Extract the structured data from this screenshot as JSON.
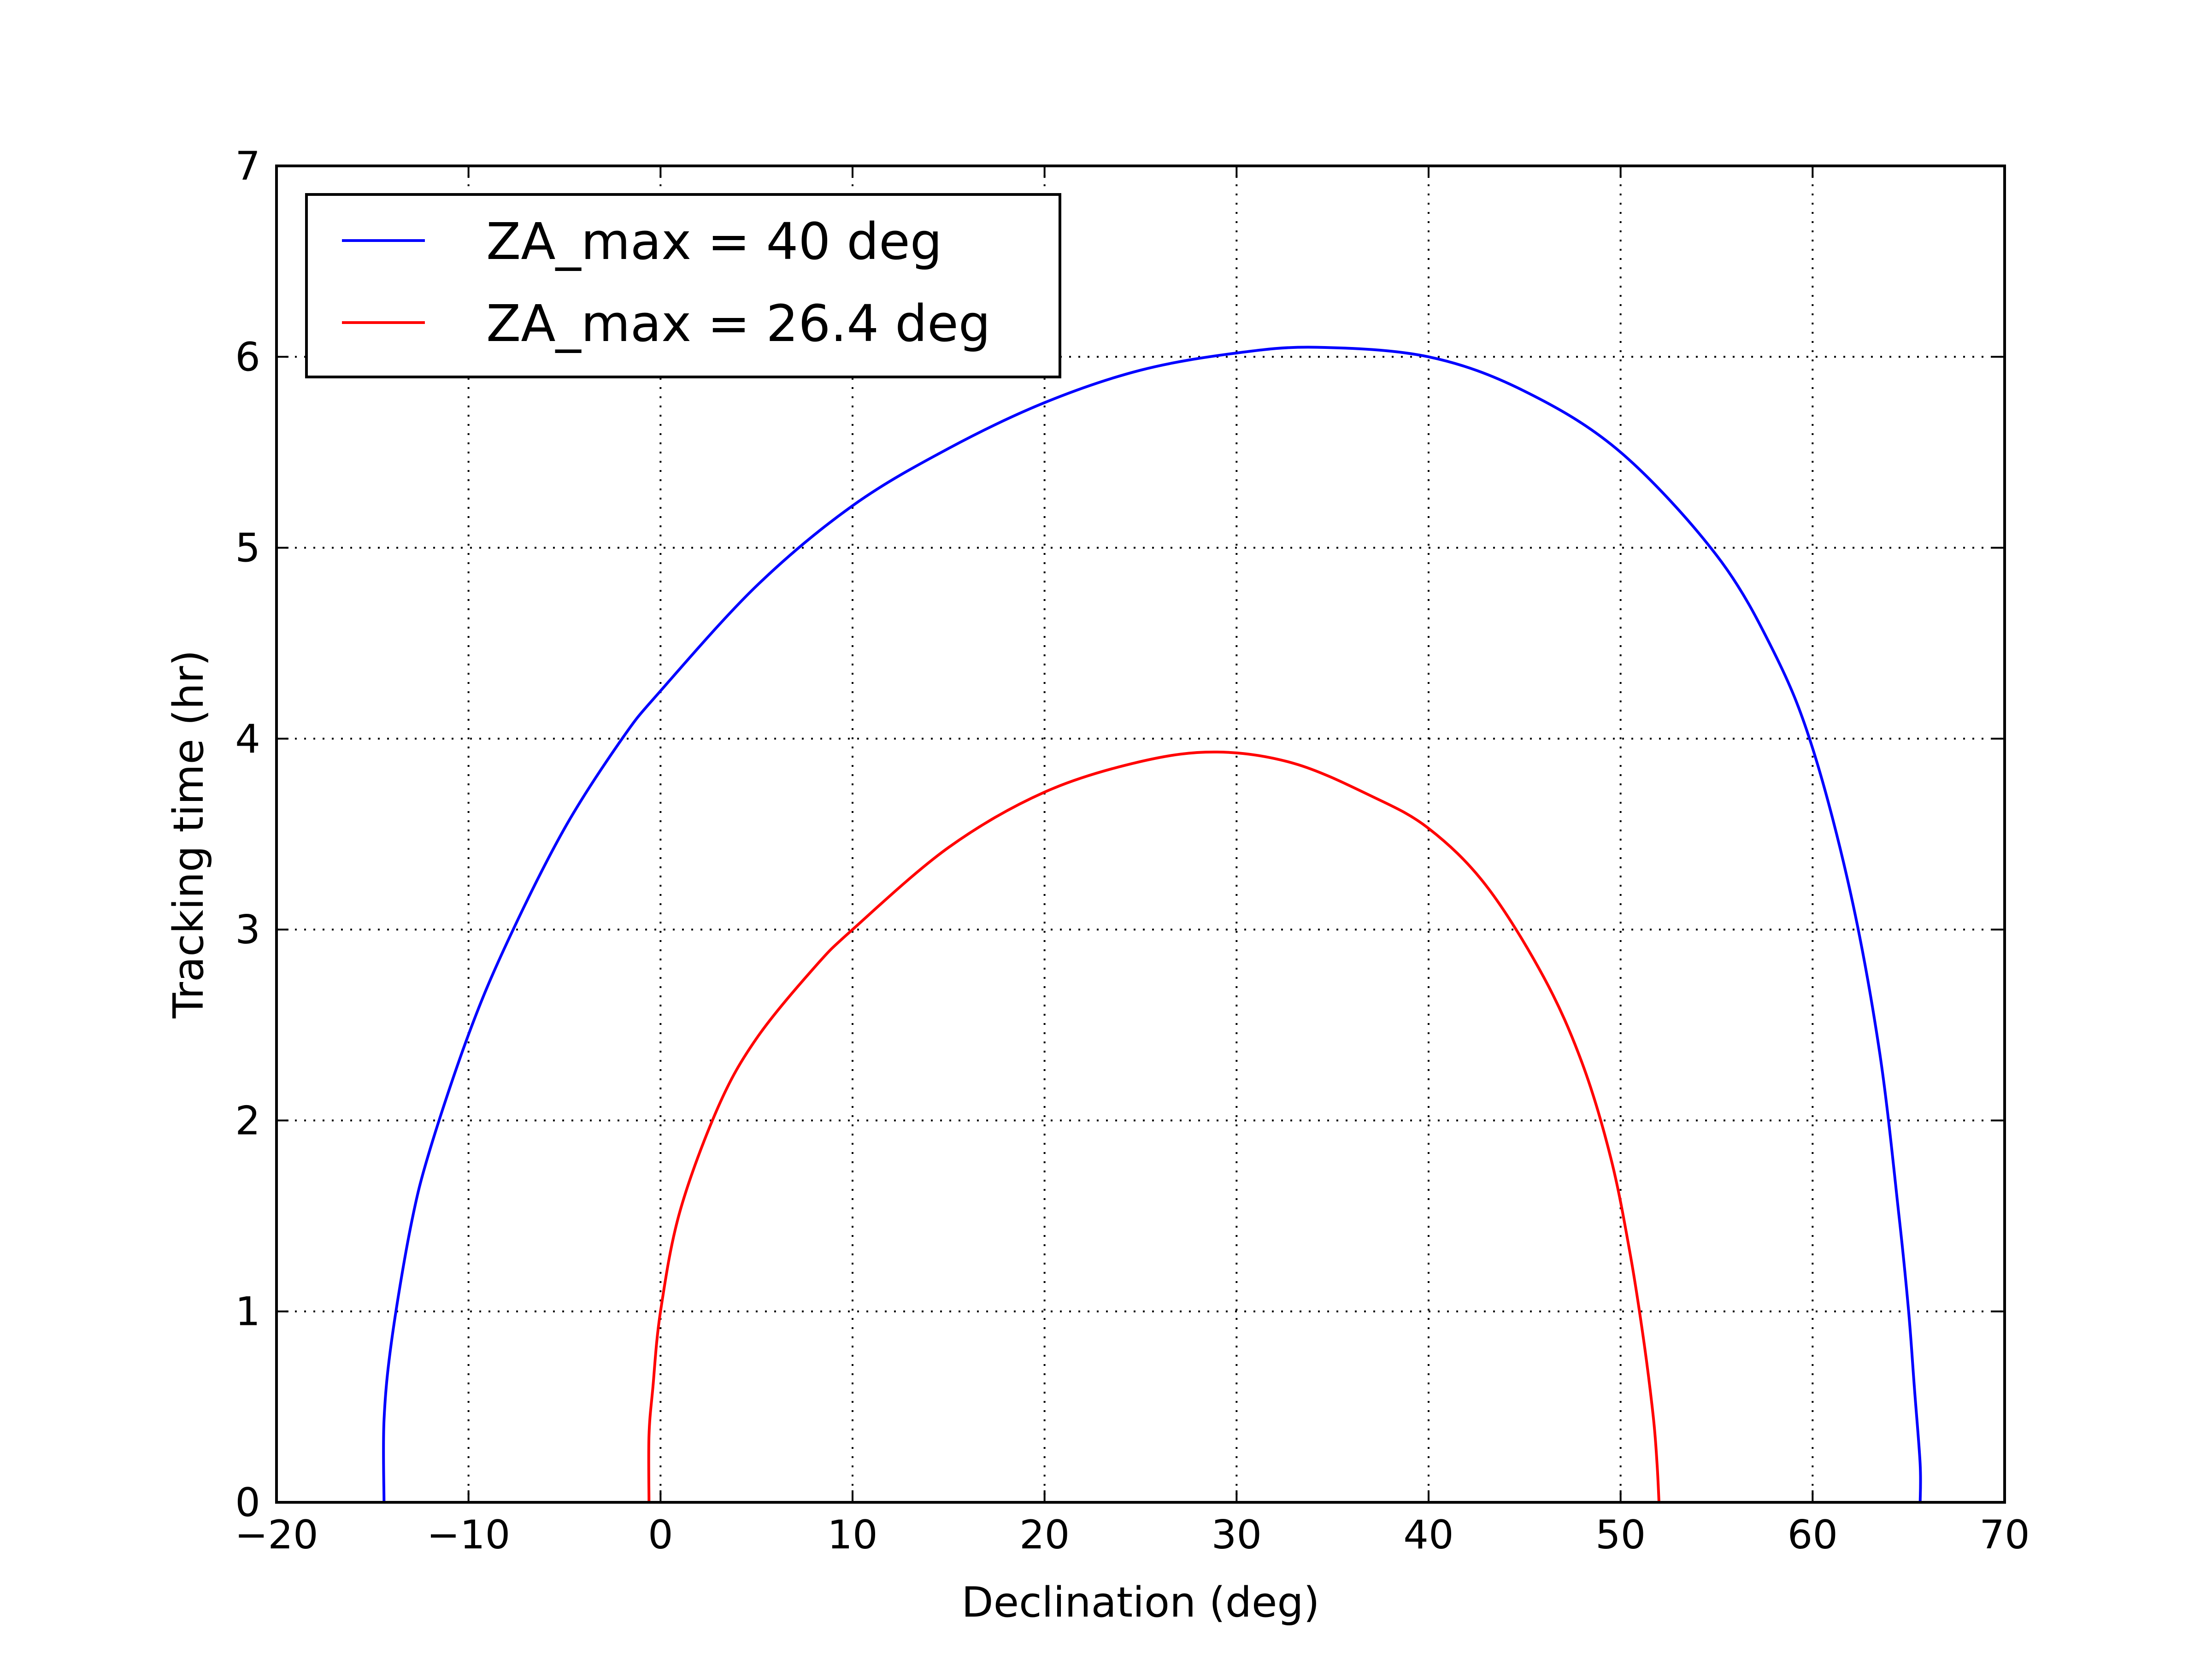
{
  "chart_data": {
    "type": "line",
    "title": "",
    "xlabel": "Declination (deg)",
    "ylabel": "Tracking time (hr)",
    "xlim": [
      -20,
      70
    ],
    "ylim": [
      0,
      7
    ],
    "xticks": [
      -20,
      -10,
      0,
      10,
      20,
      30,
      40,
      50,
      60,
      70
    ],
    "xtick_labels": [
      "−20",
      "−10",
      "0",
      "10",
      "20",
      "30",
      "40",
      "50",
      "60",
      "70"
    ],
    "yticks": [
      0,
      1,
      2,
      3,
      4,
      5,
      6,
      7
    ],
    "ytick_labels": [
      "0",
      "1",
      "2",
      "3",
      "4",
      "5",
      "6",
      "7"
    ],
    "grid": true,
    "legend_position": "top-left",
    "series": [
      {
        "name": "ZA_max = 40 deg",
        "color": "#0000ff",
        "x": [
          -14.4,
          -14.4,
          -14.0,
          -13.0,
          -12.0,
          -10.0,
          -8.0,
          -5.0,
          -2.0,
          0.0,
          5.0,
          10.0,
          15.0,
          20.0,
          25.0,
          30.0,
          34.2,
          40.0,
          45.0,
          50.0,
          55.0,
          58.0,
          60.0,
          62.0,
          63.5,
          64.5,
          65.0,
          65.3,
          65.6,
          65.6
        ],
        "y": [
          0.0,
          0.43,
          0.85,
          1.45,
          1.85,
          2.45,
          2.93,
          3.53,
          4.0,
          4.25,
          4.8,
          5.22,
          5.52,
          5.76,
          5.93,
          6.02,
          6.05,
          6.0,
          5.82,
          5.5,
          4.96,
          4.45,
          3.95,
          3.18,
          2.35,
          1.5,
          1.0,
          0.6,
          0.2,
          0.0
        ]
      },
      {
        "name": "ZA_max = 26.4 deg",
        "color": "#ff0000",
        "x": [
          -0.6,
          -0.6,
          -0.4,
          0.0,
          1.0,
          3.0,
          5.0,
          8.0,
          10.0,
          15.0,
          20.0,
          25.0,
          29.0,
          33.0,
          37.0,
          40.0,
          43.0,
          46.0,
          48.0,
          49.5,
          50.5,
          51.2,
          51.7,
          51.9,
          52.0
        ],
        "y": [
          0.0,
          0.35,
          0.6,
          1.0,
          1.52,
          2.07,
          2.43,
          2.8,
          3.0,
          3.43,
          3.72,
          3.88,
          3.93,
          3.87,
          3.7,
          3.53,
          3.23,
          2.75,
          2.3,
          1.8,
          1.3,
          0.85,
          0.45,
          0.2,
          0.0
        ]
      }
    ]
  }
}
